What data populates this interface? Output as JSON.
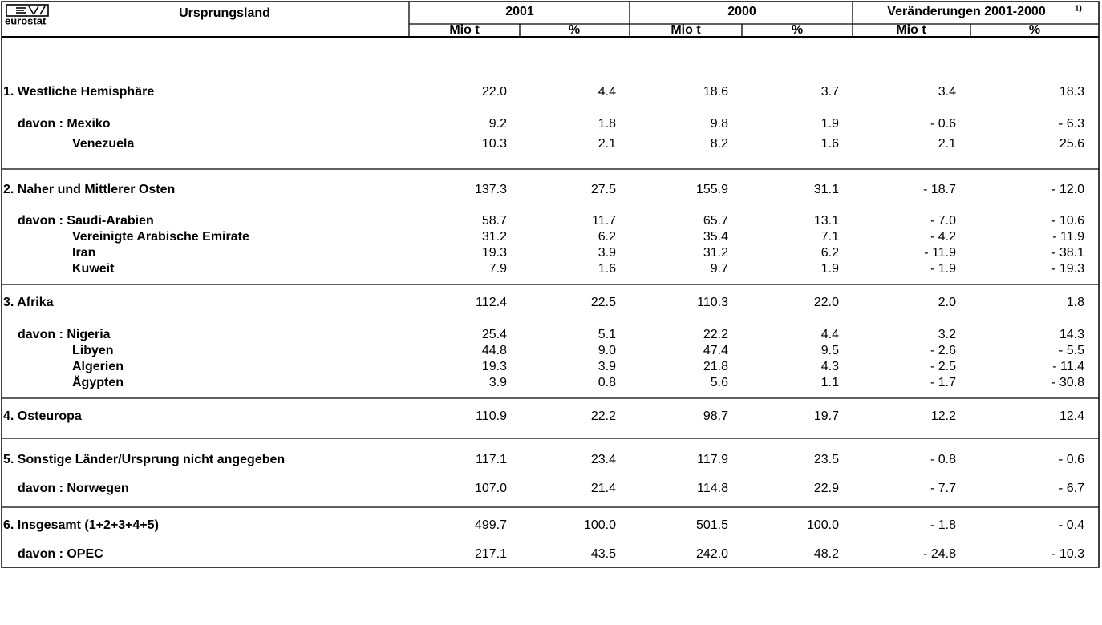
{
  "header": {
    "logo": "eurostat",
    "title": "Ursprungsland",
    "groups": [
      "2001",
      "2000",
      "Veränderungen 2001-2000"
    ],
    "footnote": "1)",
    "subheads": [
      "Mio t",
      "%",
      "Mio t",
      "%",
      "Mio t",
      "%"
    ]
  },
  "sections": [
    {
      "rows": [
        {
          "label": "1. Westliche Hemisphäre",
          "values": [
            "22.0",
            "4.4",
            "18.6",
            "3.7",
            "3.4",
            "18.3"
          ]
        },
        {
          "label": "davon : Mexiko",
          "values": [
            "9.2",
            "1.8",
            "9.8",
            "1.9",
            "- 0.6",
            "- 6.3"
          ]
        },
        {
          "label": "Venezuela",
          "values": [
            "10.3",
            "2.1",
            "8.2",
            "1.6",
            "2.1",
            "25.6"
          ]
        }
      ]
    },
    {
      "rows": [
        {
          "label": "2. Naher und Mittlerer Osten",
          "values": [
            "137.3",
            "27.5",
            "155.9",
            "31.1",
            "- 18.7",
            "- 12.0"
          ]
        },
        {
          "label": "davon : Saudi-Arabien",
          "values": [
            "58.7",
            "11.7",
            "65.7",
            "13.1",
            "- 7.0",
            "- 10.6"
          ]
        },
        {
          "label": "Vereinigte Arabische Emirate",
          "values": [
            "31.2",
            "6.2",
            "35.4",
            "7.1",
            "- 4.2",
            "- 11.9"
          ]
        },
        {
          "label": "Iran",
          "values": [
            "19.3",
            "3.9",
            "31.2",
            "6.2",
            "- 11.9",
            "- 38.1"
          ]
        },
        {
          "label": "Kuweit",
          "values": [
            "7.9",
            "1.6",
            "9.7",
            "1.9",
            "- 1.9",
            "- 19.3"
          ]
        }
      ]
    },
    {
      "rows": [
        {
          "label": "3. Afrika",
          "values": [
            "112.4",
            "22.5",
            "110.3",
            "22.0",
            "2.0",
            "1.8"
          ]
        },
        {
          "label": "davon : Nigeria",
          "values": [
            "25.4",
            "5.1",
            "22.2",
            "4.4",
            "3.2",
            "14.3"
          ]
        },
        {
          "label": "Libyen",
          "values": [
            "44.8",
            "9.0",
            "47.4",
            "9.5",
            "- 2.6",
            "- 5.5"
          ]
        },
        {
          "label": "Algerien",
          "values": [
            "19.3",
            "3.9",
            "21.8",
            "4.3",
            "- 2.5",
            "- 11.4"
          ]
        },
        {
          "label": "Ägypten",
          "values": [
            "3.9",
            "0.8",
            "5.6",
            "1.1",
            "- 1.7",
            "- 30.8"
          ]
        }
      ]
    },
    {
      "rows": [
        {
          "label": "4. Osteuropa",
          "values": [
            "110.9",
            "22.2",
            "98.7",
            "19.7",
            "12.2",
            "12.4"
          ]
        }
      ]
    },
    {
      "rows": [
        {
          "label": "5. Sonstige Länder/Ursprung nicht angegeben",
          "values": [
            "117.1",
            "23.4",
            "117.9",
            "23.5",
            "- 0.8",
            "- 0.6"
          ]
        },
        {
          "label": "davon : Norwegen",
          "values": [
            "107.0",
            "21.4",
            "114.8",
            "22.9",
            "- 7.7",
            "- 6.7"
          ]
        }
      ]
    },
    {
      "rows": [
        {
          "label": "6. Insgesamt (1+2+3+4+5)",
          "values": [
            "499.7",
            "100.0",
            "501.5",
            "100.0",
            "- 1.8",
            "- 0.4"
          ]
        },
        {
          "label": "davon : OPEC",
          "values": [
            "217.1",
            "43.5",
            "242.0",
            "48.2",
            "- 24.8",
            "- 10.3"
          ]
        }
      ]
    }
  ]
}
